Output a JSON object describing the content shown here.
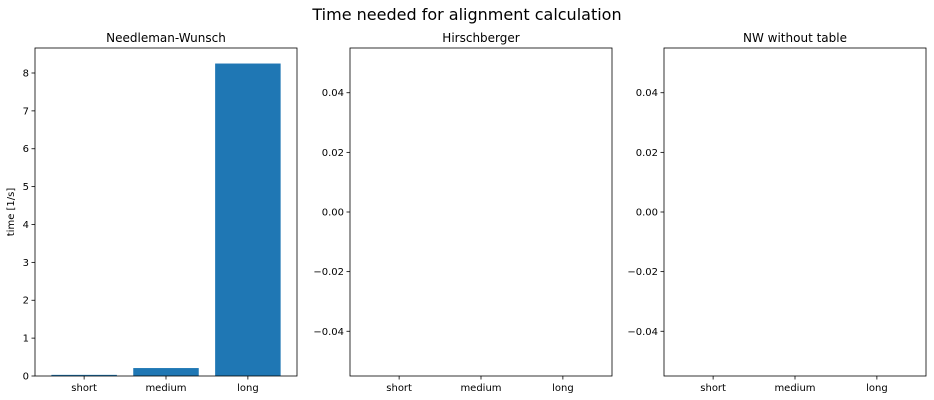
{
  "figure": {
    "title": "Time needed for alignment calculation"
  },
  "chart_data": [
    {
      "type": "bar",
      "title": "Needleman-Wunsch",
      "xlabel": "",
      "ylabel": "time [1/s]",
      "categories": [
        "short",
        "medium",
        "long"
      ],
      "values": [
        0.03,
        0.21,
        8.25
      ],
      "ylim": [
        0,
        8.66
      ],
      "yticks": [
        0,
        1,
        2,
        3,
        4,
        5,
        6,
        7,
        8
      ],
      "ytick_labels": [
        "0",
        "1",
        "2",
        "3",
        "4",
        "5",
        "6",
        "7",
        "8"
      ],
      "bar_color": "#1f77b4",
      "grid": false
    },
    {
      "type": "bar",
      "title": "Hirschberger",
      "xlabel": "",
      "ylabel": "",
      "categories": [
        "short",
        "medium",
        "long"
      ],
      "values": [
        0,
        0,
        0
      ],
      "ylim": [
        -0.055,
        0.055
      ],
      "yticks": [
        -0.04,
        -0.02,
        0.0,
        0.02,
        0.04
      ],
      "ytick_labels": [
        "−0.04",
        "−0.02",
        "0.00",
        "0.02",
        "0.04"
      ],
      "bar_color": "#1f77b4",
      "grid": false
    },
    {
      "type": "bar",
      "title": "NW without table",
      "xlabel": "",
      "ylabel": "",
      "categories": [
        "short",
        "medium",
        "long"
      ],
      "values": [
        0,
        0,
        0
      ],
      "ylim": [
        -0.055,
        0.055
      ],
      "yticks": [
        -0.04,
        -0.02,
        0.0,
        0.02,
        0.04
      ],
      "ytick_labels": [
        "−0.04",
        "−0.02",
        "0.00",
        "0.02",
        "0.04"
      ],
      "bar_color": "#1f77b4",
      "grid": false
    }
  ]
}
